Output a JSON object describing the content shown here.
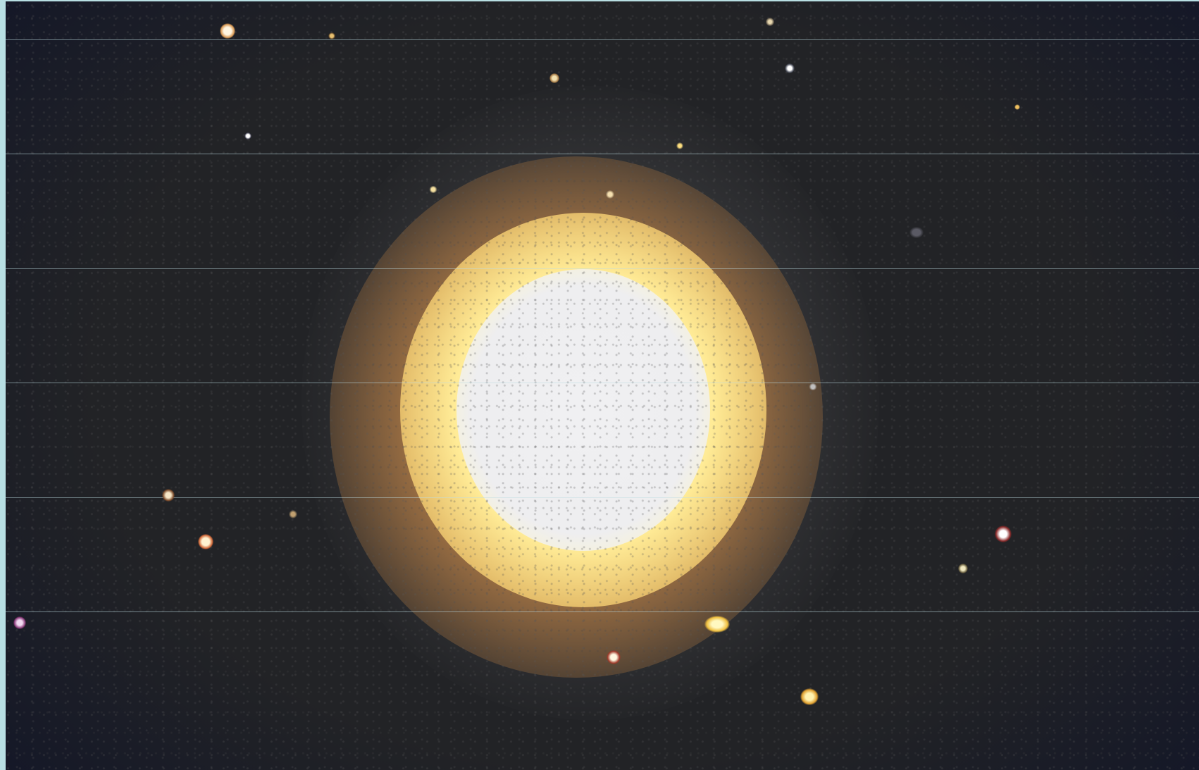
{
  "image": {
    "subject": "elliptical-galaxy",
    "palette": {
      "background": "#222326",
      "frame": "#b8dfe3",
      "core": "#eeeef0",
      "inner_halo": "#ffeb96",
      "outer_halo": "#be8246",
      "scan_line": "#bedce1"
    }
  }
}
